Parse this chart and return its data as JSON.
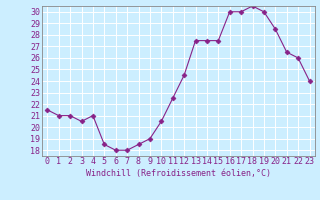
{
  "x": [
    0,
    1,
    2,
    3,
    4,
    5,
    6,
    7,
    8,
    9,
    10,
    11,
    12,
    13,
    14,
    15,
    16,
    17,
    18,
    19,
    20,
    21,
    22,
    23
  ],
  "y": [
    21.5,
    21.0,
    21.0,
    20.5,
    21.0,
    18.5,
    18.0,
    18.0,
    18.5,
    19.0,
    20.5,
    22.5,
    24.5,
    27.5,
    27.5,
    27.5,
    30.0,
    30.0,
    30.5,
    30.0,
    28.5,
    26.5,
    26.0,
    24.0
  ],
  "line_color": "#882288",
  "marker": "D",
  "marker_size": 2.5,
  "xlabel": "Windchill (Refroidissement éolien,°C)",
  "ylabel": "",
  "title": "",
  "xlim": [
    -0.5,
    23.5
  ],
  "ylim": [
    17.5,
    30.5
  ],
  "yticks": [
    18,
    19,
    20,
    21,
    22,
    23,
    24,
    25,
    26,
    27,
    28,
    29,
    30
  ],
  "xticks": [
    0,
    1,
    2,
    3,
    4,
    5,
    6,
    7,
    8,
    9,
    10,
    11,
    12,
    13,
    14,
    15,
    16,
    17,
    18,
    19,
    20,
    21,
    22,
    23
  ],
  "background_color": "#cceeff",
  "grid_color": "#aaddcc",
  "spine_color": "#888888",
  "label_color": "#882288",
  "label_fontsize": 6,
  "tick_fontsize": 6
}
